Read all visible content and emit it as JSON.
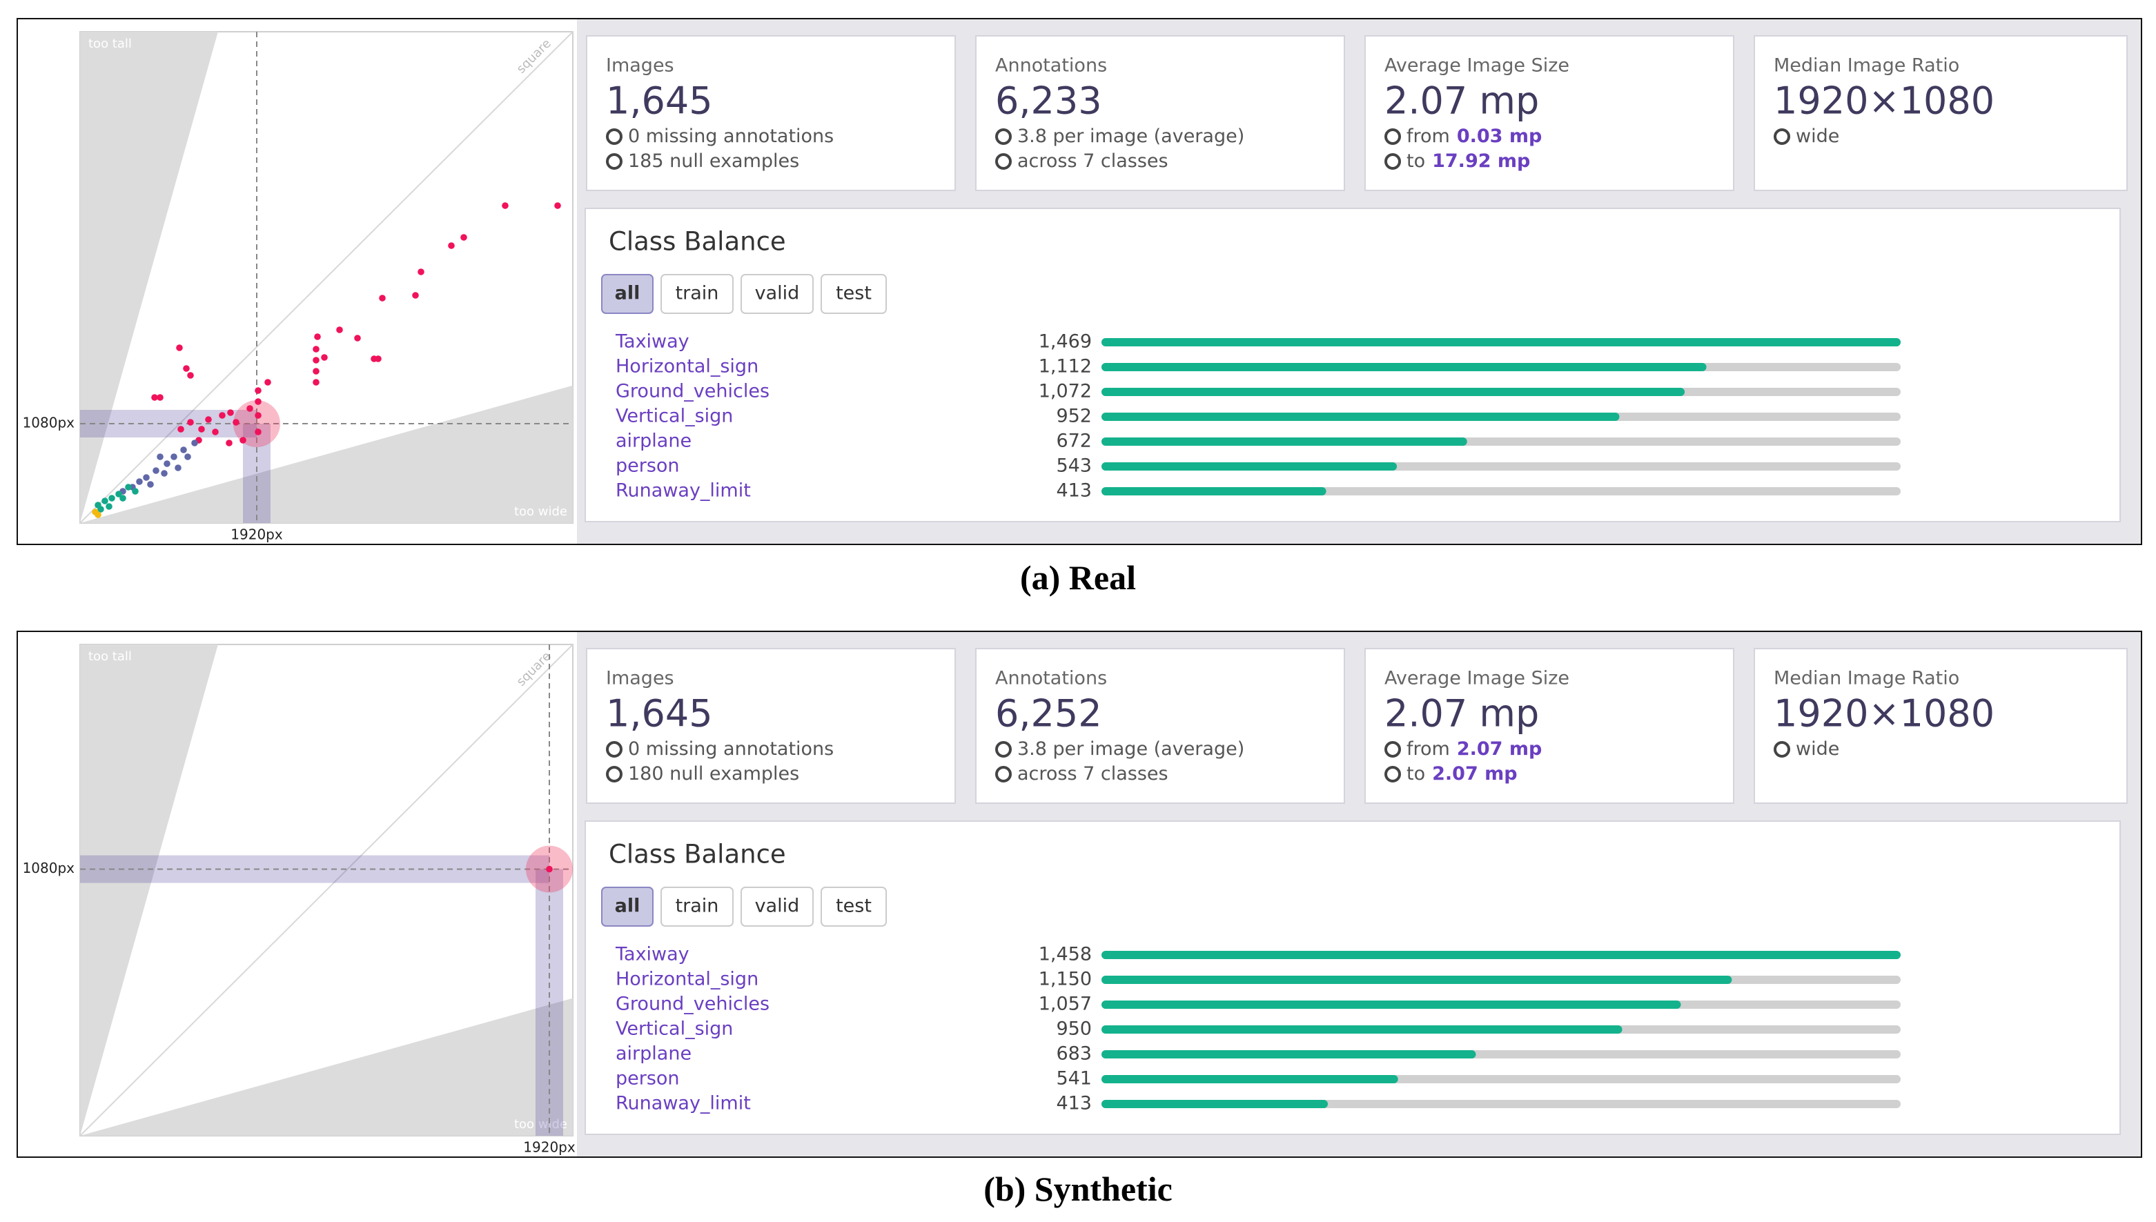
{
  "panels": [
    {
      "caption": "(a) Real",
      "scatter": {
        "too_tall": "too tall",
        "square": "square",
        "too_wide": "too wide",
        "xlim": [
          0,
          5355
        ],
        "ylim": [
          0,
          5340
        ],
        "x_marker": {
          "value": 1920,
          "label": "1920px"
        },
        "y_marker": {
          "value": 1080,
          "label": "1080px"
        },
        "series": [
          {
            "color": "#f0125a",
            "x": [
              5190,
              4620,
              4170,
              4035,
              3705,
              3645,
              3285,
              2820,
              3015,
              2580,
              2565,
              2565,
              2565,
              2565,
              2655,
              3195,
              3240,
              1080,
              1155,
              1200,
              810,
              870,
              1935,
              2040,
              1935,
              1935,
              1935,
              1635,
              1545,
              1395,
              1320,
              1290,
              1470,
              1095,
              1200,
              1620,
              1695,
              1845,
              1770
            ],
            "y": [
              3450,
              3450,
              3105,
              3015,
              2730,
              2475,
              2445,
              2100,
              2010,
              2025,
              1890,
              1770,
              1650,
              1530,
              1800,
              1785,
              1785,
              1905,
              1680,
              1605,
              1365,
              1365,
              1440,
              1530,
              1320,
              1170,
              990,
              1200,
              1170,
              1125,
              1020,
              900,
              990,
              1020,
              1095,
              870,
              1095,
              1245,
              900
            ]
          },
          {
            "color": "#6068a8",
            "x": [
              1245,
              1125,
              1020,
              945,
              825,
              720,
              645,
              570,
              465,
              870,
              1065,
              765,
              1170,
              915
            ],
            "y": [
              870,
              795,
              720,
              645,
              570,
              495,
              450,
              390,
              345,
              720,
              600,
              420,
              720,
              540
            ]
          },
          {
            "color": "#13a88a",
            "x": [
              195,
              270,
              345,
              420,
              525,
              315,
              225,
              465,
              600
            ],
            "y": [
              195,
              240,
              270,
              315,
              390,
              180,
              150,
              270,
              345
            ]
          },
          {
            "color": "#f2b90f",
            "x": [
              165,
              195
            ],
            "y": [
              120,
              90
            ]
          }
        ]
      },
      "cards": [
        {
          "title": "Images",
          "value": "1,645",
          "lines": [
            {
              "text": "0 missing annotations"
            },
            {
              "text": "185 null examples"
            }
          ]
        },
        {
          "title": "Annotations",
          "value": "6,233",
          "lines": [
            {
              "text": "3.8 per image (average)"
            },
            {
              "text": "across 7 classes"
            }
          ]
        },
        {
          "title": "Average Image Size",
          "value": "2.07 mp",
          "lines": [
            {
              "text": "from",
              "value": "0.03 mp"
            },
            {
              "text": "to",
              "value": "17.92 mp"
            }
          ]
        },
        {
          "title": "Median Image Ratio",
          "value": "1920×1080",
          "lines": [
            {
              "text": "wide"
            }
          ]
        }
      ],
      "class_balance": {
        "title": "Class Balance",
        "tabs": [
          "all",
          "train",
          "valid",
          "test"
        ],
        "categories": [
          "Taxiway",
          "Horizontal_sign",
          "Ground_vehicles",
          "Vertical_sign",
          "airplane",
          "person",
          "Runaway_limit"
        ],
        "values": [
          1469,
          1112,
          1072,
          952,
          672,
          543,
          413
        ],
        "value_labels": [
          "1,469",
          "1,112",
          "1,072",
          "952",
          "672",
          "543",
          "413"
        ],
        "xlim": [
          0,
          1469
        ],
        "color": "#13b28c"
      }
    },
    {
      "caption": "(b) Synthetic",
      "scatter": {
        "too_tall": "too tall",
        "square": "square",
        "too_wide": "too wide",
        "xlim": [
          0,
          2016
        ],
        "ylim": [
          0,
          1990
        ],
        "x_marker": {
          "value": 1920,
          "label": "1920px"
        },
        "y_marker": {
          "value": 1080,
          "label": "1080px"
        },
        "series": [
          {
            "color": "#f0125a",
            "x": [
              1920
            ],
            "y": [
              1080
            ]
          }
        ]
      },
      "cards": [
        {
          "title": "Images",
          "value": "1,645",
          "lines": [
            {
              "text": "0 missing annotations"
            },
            {
              "text": "180 null examples"
            }
          ]
        },
        {
          "title": "Annotations",
          "value": "6,252",
          "lines": [
            {
              "text": "3.8 per image (average)"
            },
            {
              "text": "across 7 classes"
            }
          ]
        },
        {
          "title": "Average Image Size",
          "value": "2.07 mp",
          "lines": [
            {
              "text": "from",
              "value": "2.07 mp"
            },
            {
              "text": "to",
              "value": "2.07 mp"
            }
          ]
        },
        {
          "title": "Median Image Ratio",
          "value": "1920×1080",
          "lines": [
            {
              "text": "wide"
            }
          ]
        }
      ],
      "class_balance": {
        "title": "Class Balance",
        "tabs": [
          "all",
          "train",
          "valid",
          "test"
        ],
        "categories": [
          "Taxiway",
          "Horizontal_sign",
          "Ground_vehicles",
          "Vertical_sign",
          "airplane",
          "person",
          "Runaway_limit"
        ],
        "values": [
          1458,
          1150,
          1057,
          950,
          683,
          541,
          413
        ],
        "value_labels": [
          "1,458",
          "1,150",
          "1,057",
          "950",
          "683",
          "541",
          "413"
        ],
        "xlim": [
          0,
          1458
        ],
        "color": "#13b28c"
      }
    }
  ]
}
